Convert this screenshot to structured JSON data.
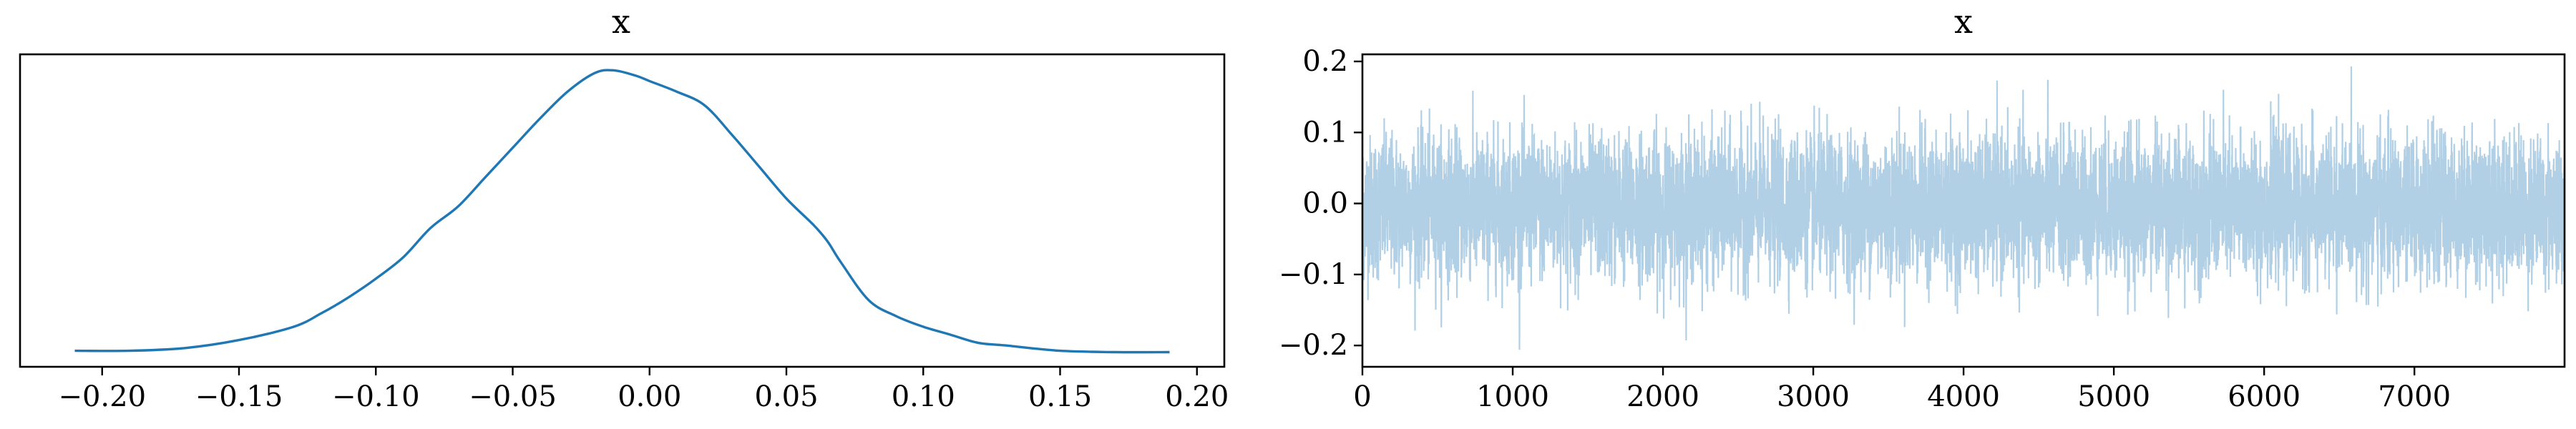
{
  "chart_data": [
    {
      "type": "line",
      "title": "x",
      "xlabel": "",
      "ylabel": "",
      "xlim": [
        -0.23,
        0.21
      ],
      "x_ticks": [
        -0.2,
        -0.15,
        -0.1,
        -0.05,
        0.0,
        0.05,
        0.1,
        0.15,
        0.2
      ],
      "x_tick_labels": [
        "−0.20",
        "−0.15",
        "−0.10",
        "−0.05",
        "0.00",
        "0.05",
        "0.10",
        "0.15",
        "0.20"
      ],
      "y_ticks_shown": false,
      "grid": false,
      "color": "#1f77b4",
      "series": [
        {
          "x": [
            -0.21,
            -0.19,
            -0.17,
            -0.15,
            -0.13,
            -0.12,
            -0.11,
            -0.1,
            -0.09,
            -0.08,
            -0.07,
            -0.06,
            -0.05,
            -0.04,
            -0.03,
            -0.02,
            -0.013,
            -0.005,
            0.0,
            0.01,
            0.02,
            0.03,
            0.04,
            0.05,
            0.06,
            0.065,
            0.07,
            0.08,
            0.09,
            0.1,
            0.11,
            0.12,
            0.13,
            0.15,
            0.17,
            0.19
          ],
          "y": [
            0.01,
            0.01,
            0.02,
            0.05,
            0.1,
            0.15,
            0.21,
            0.28,
            0.36,
            0.47,
            0.55,
            0.66,
            0.77,
            0.88,
            0.98,
            1.05,
            1.06,
            1.04,
            1.02,
            0.98,
            0.93,
            0.82,
            0.7,
            0.58,
            0.48,
            0.42,
            0.34,
            0.2,
            0.14,
            0.1,
            0.07,
            0.04,
            0.03,
            0.01,
            0.005,
            0.005
          ]
        }
      ]
    },
    {
      "type": "line",
      "title": "x",
      "xlabel": "",
      "ylabel": "",
      "xlim": [
        0,
        7999
      ],
      "ylim": [
        -0.23,
        0.21
      ],
      "x_ticks": [
        0,
        1000,
        2000,
        3000,
        4000,
        5000,
        6000,
        7000
      ],
      "x_tick_labels": [
        "0",
        "1000",
        "2000",
        "3000",
        "4000",
        "5000",
        "6000",
        "7000"
      ],
      "y_ticks": [
        -0.2,
        -0.1,
        0.0,
        0.1,
        0.2
      ],
      "y_tick_labels": [
        "−0.2",
        "−0.1",
        "0.0",
        "0.1",
        "0.2"
      ],
      "grid": false,
      "color": "#1f77b4",
      "alpha": 0.35,
      "n_draws": 8000,
      "series_mean": -0.005,
      "series_sd": 0.05,
      "y_extremes": {
        "max": 0.193,
        "min": -0.212
      }
    }
  ]
}
